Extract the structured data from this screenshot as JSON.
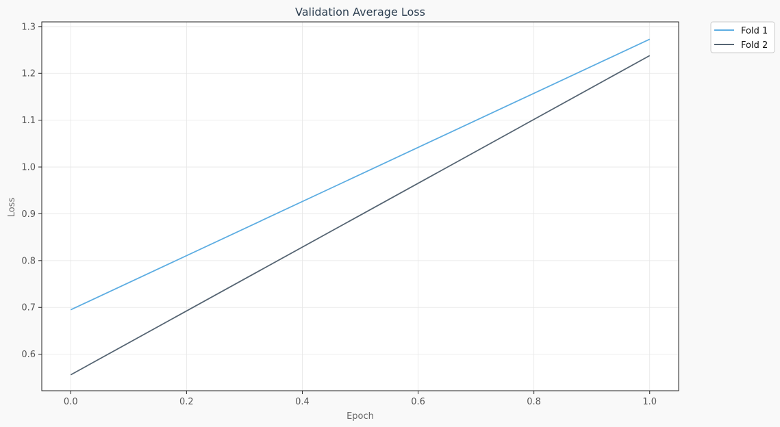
{
  "chart_data": {
    "type": "line",
    "title": "Validation Average Loss",
    "xlabel": "Epoch",
    "ylabel": "Loss",
    "xlim": [
      -0.05,
      1.05
    ],
    "ylim": [
      0.522,
      1.31
    ],
    "xticks": [
      0.0,
      0.2,
      0.4,
      0.6,
      0.8,
      1.0
    ],
    "xtick_labels": [
      "0.0",
      "0.2",
      "0.4",
      "0.6",
      "0.8",
      "1.0"
    ],
    "yticks": [
      0.6,
      0.7,
      0.8,
      0.9,
      1.0,
      1.1,
      1.2,
      1.3
    ],
    "ytick_labels": [
      "0.6",
      "0.7",
      "0.8",
      "0.9",
      "1.0",
      "1.1",
      "1.2",
      "1.3"
    ],
    "grid": true,
    "legend_position": "outside-top-right",
    "x": [
      0,
      1
    ],
    "series": [
      {
        "name": "Fold 1",
        "values": [
          0.695,
          1.273
        ],
        "color": "#5dade2"
      },
      {
        "name": "Fold 2",
        "values": [
          0.556,
          1.238
        ],
        "color": "#566573"
      }
    ]
  }
}
